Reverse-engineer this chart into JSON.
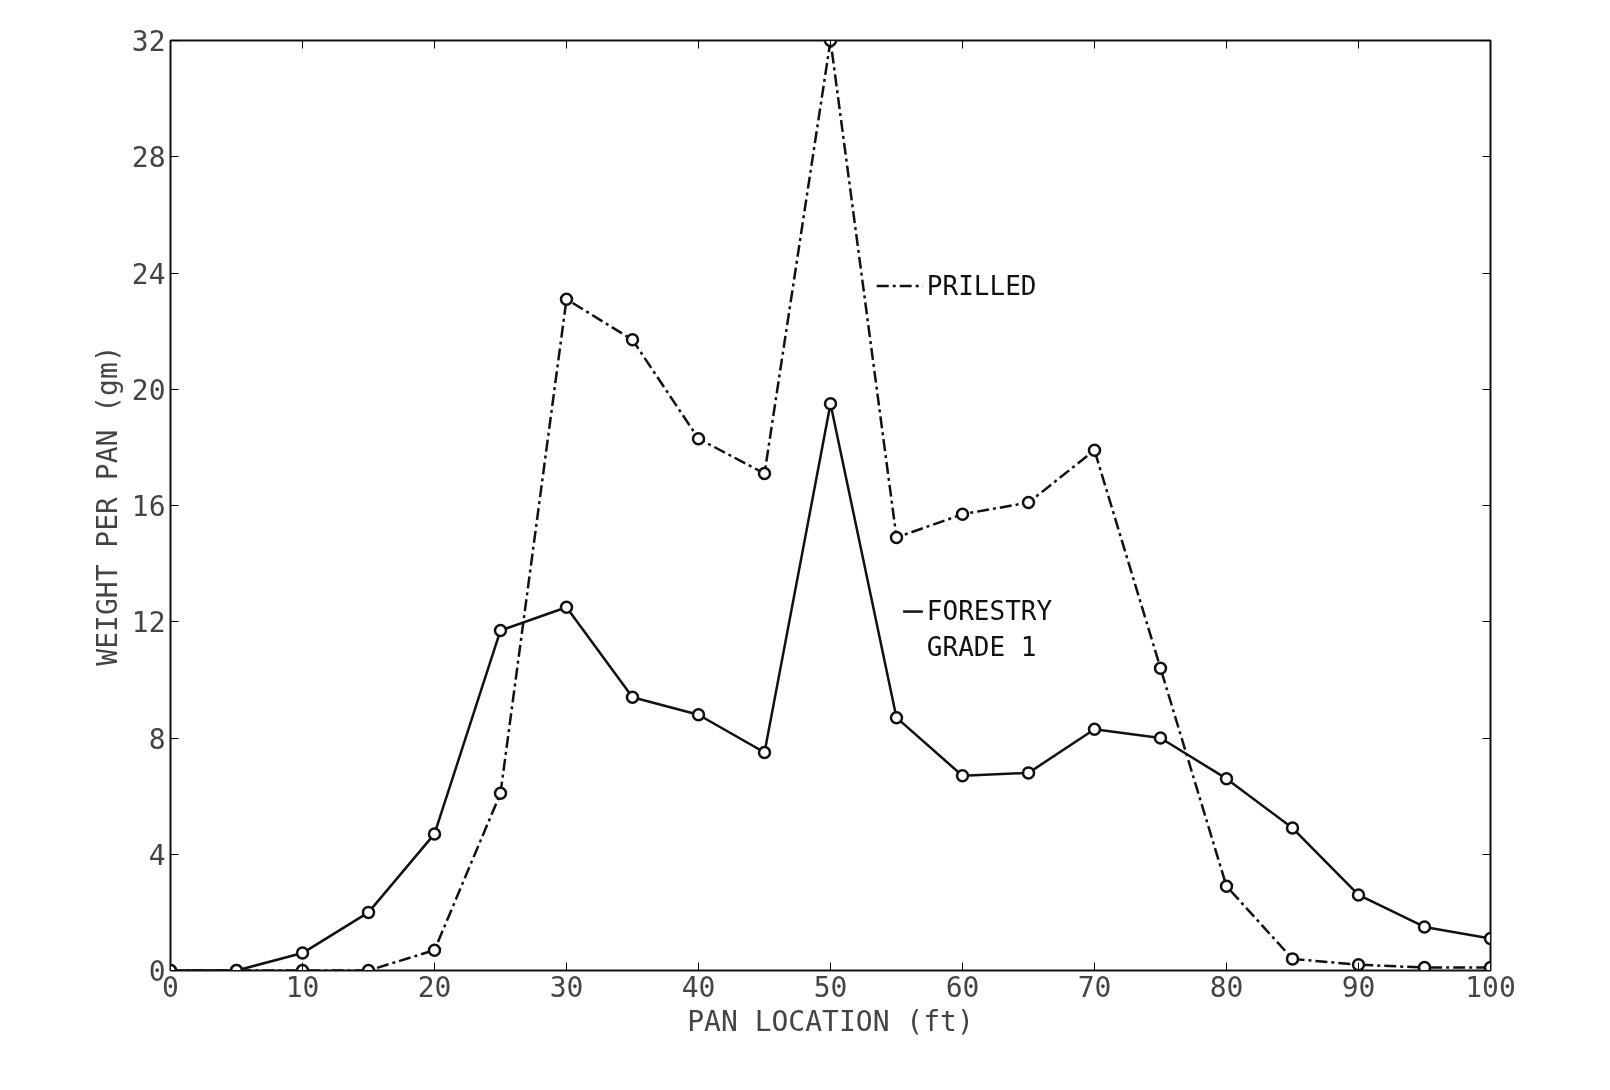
{
  "chart_data": {
    "type": "line",
    "xlabel": "PAN LOCATION (ft)",
    "ylabel": "WEIGHT PER PAN (gm)",
    "x": [
      0,
      5,
      10,
      15,
      20,
      25,
      30,
      35,
      40,
      45,
      50,
      55,
      60,
      65,
      70,
      75,
      80,
      85,
      90,
      95,
      100
    ],
    "series": [
      {
        "name": "PRILLED",
        "color": "#111111",
        "line_style": "dashed",
        "values": [
          0,
          0,
          0,
          0,
          0.7,
          6.1,
          23.1,
          21.7,
          18.3,
          17.1,
          32,
          14.9,
          15.7,
          16.1,
          17.9,
          10.4,
          2.9,
          0.4,
          0.2,
          0.1,
          0.1
        ]
      },
      {
        "name": "FORESTRY GRADE 1",
        "color": "#111111",
        "line_style": "solid",
        "values": [
          0,
          0,
          0.6,
          2.0,
          4.7,
          11.7,
          12.5,
          9.4,
          8.8,
          7.5,
          19.5,
          8.7,
          6.7,
          6.8,
          8.3,
          8.0,
          6.6,
          4.9,
          2.6,
          1.5,
          1.1
        ]
      }
    ],
    "xlim": [
      0,
      100
    ],
    "ylim": [
      0,
      32
    ],
    "xticks": [
      0,
      10,
      20,
      30,
      40,
      50,
      60,
      70,
      80,
      90,
      100
    ],
    "yticks": [
      0,
      4,
      8,
      12,
      16,
      20,
      24,
      28,
      32
    ],
    "grid": false,
    "marker": "circle",
    "legend": "right"
  }
}
